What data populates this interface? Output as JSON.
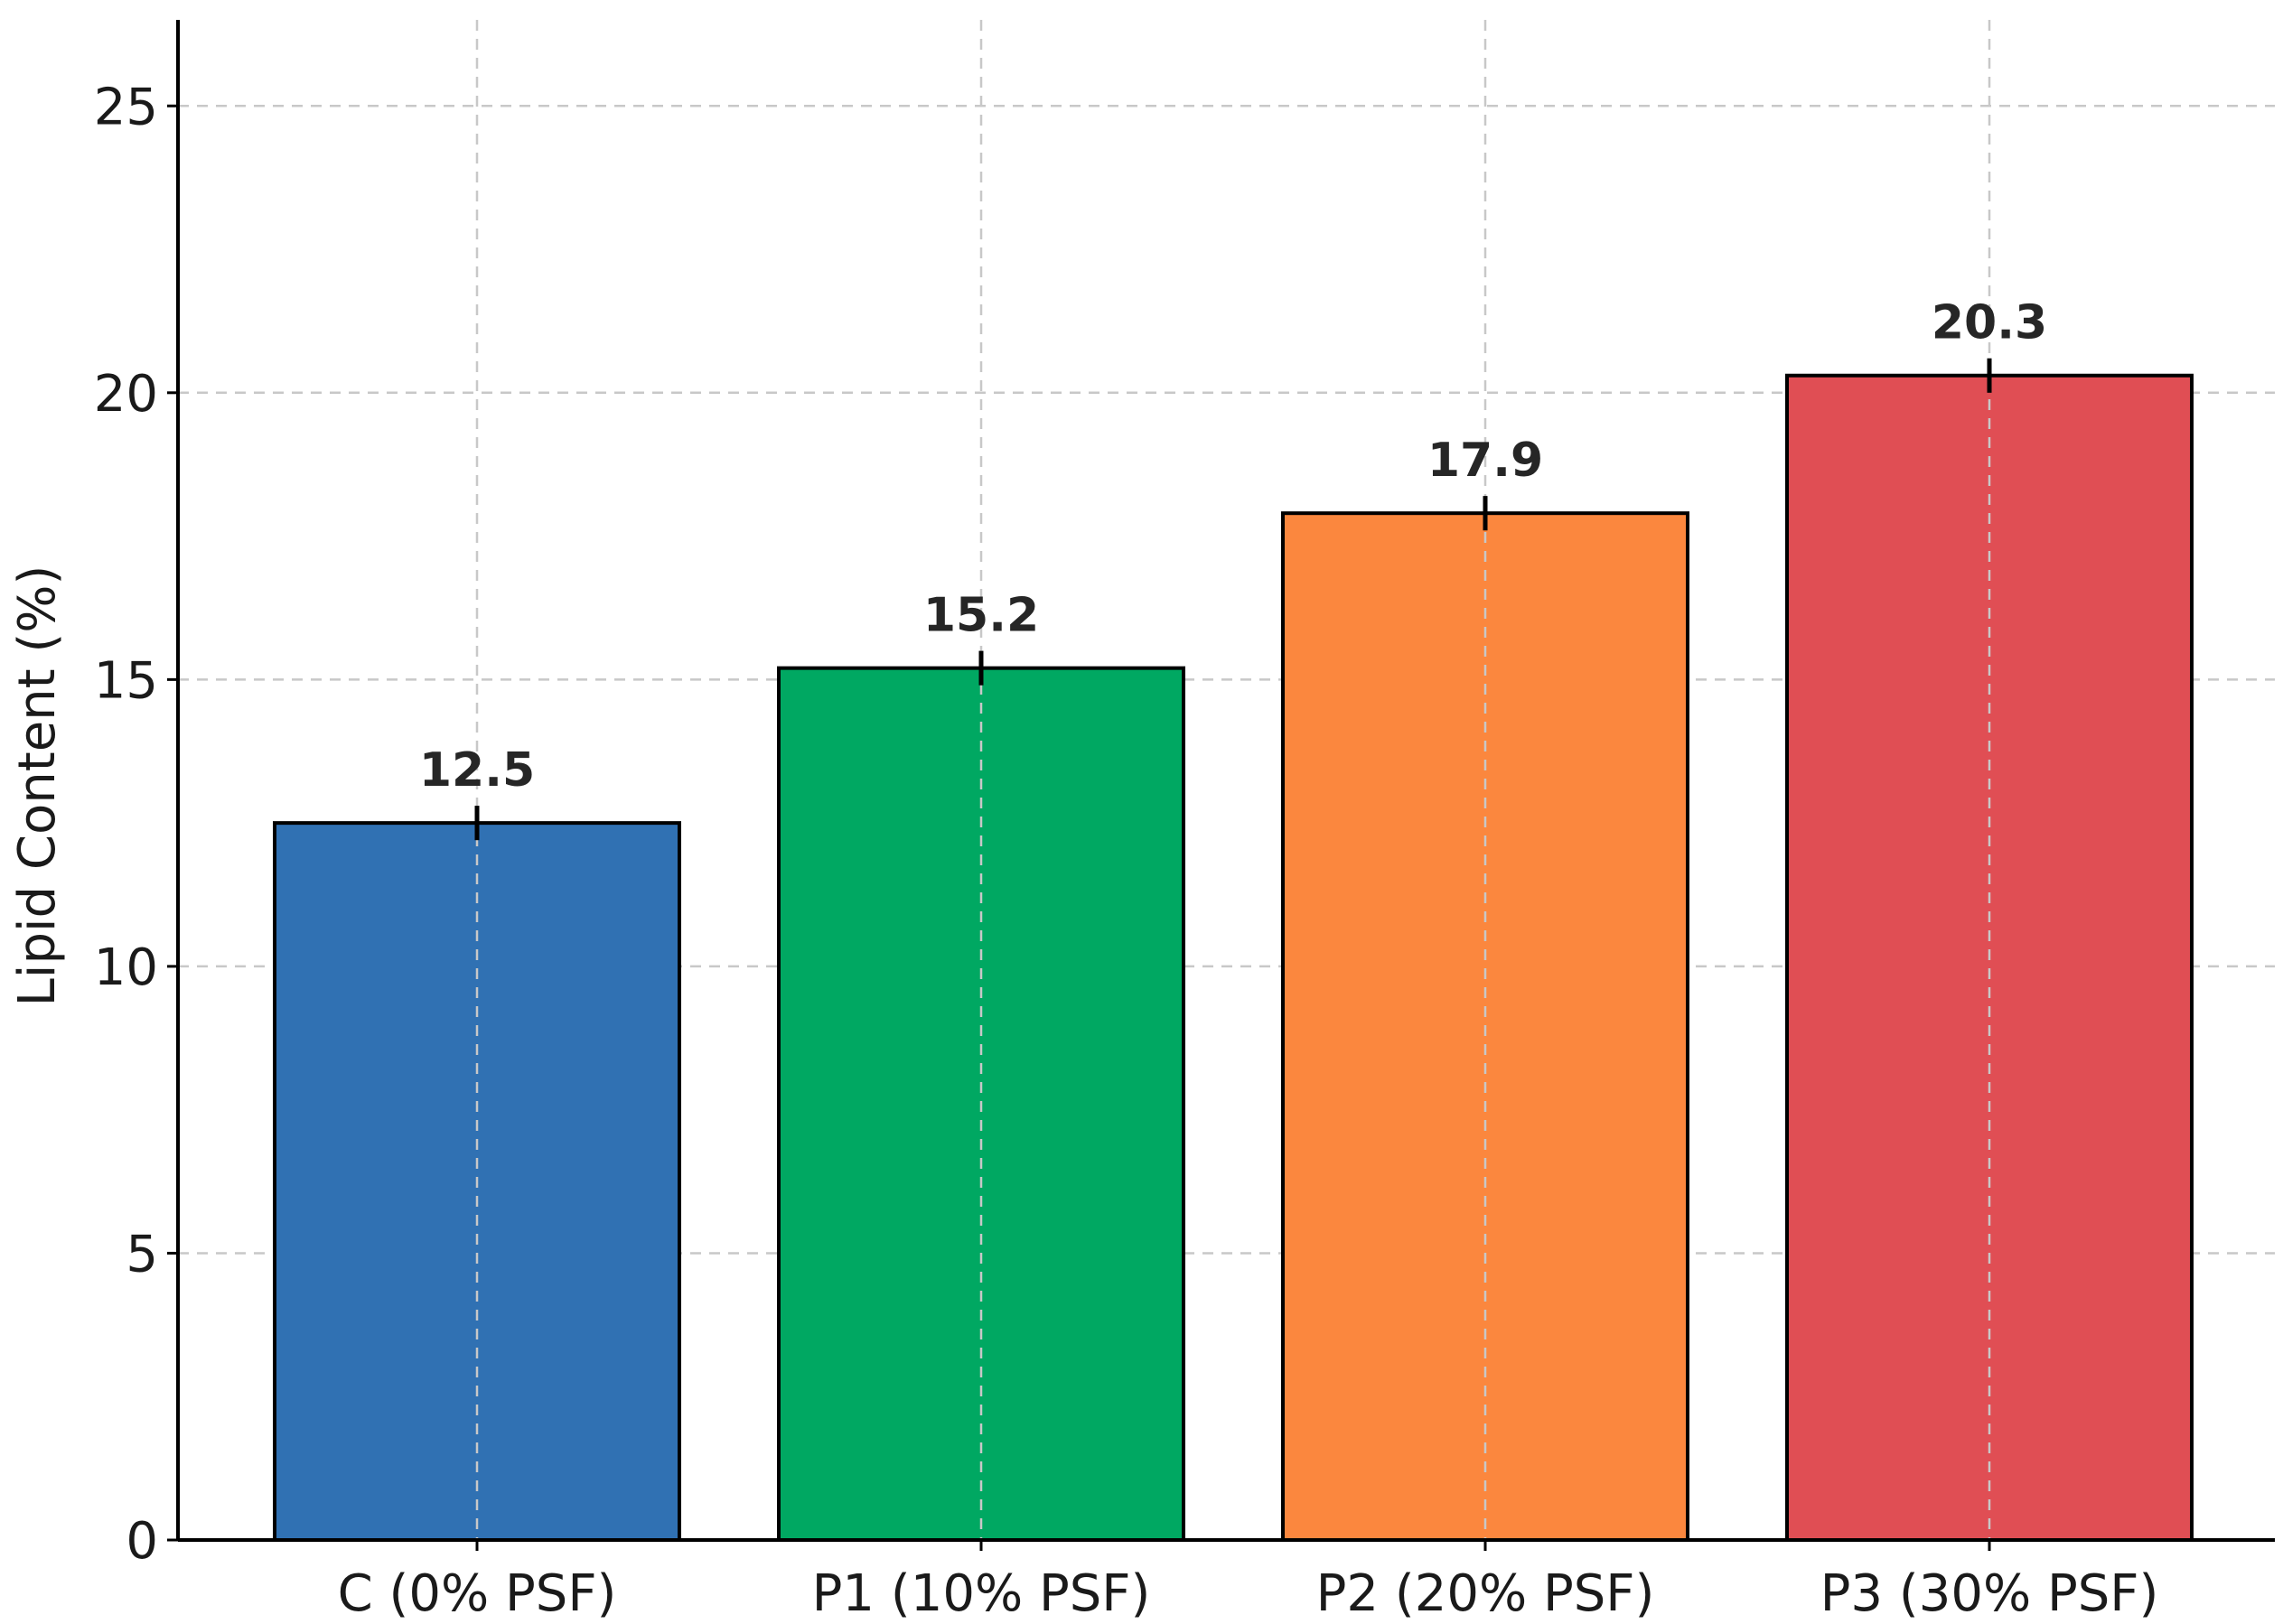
{
  "chart_data": {
    "type": "bar",
    "title": "",
    "xlabel": "",
    "ylabel": "Lipid Content (%)",
    "categories": [
      "C (0% PSF)",
      "P1 (10% PSF)",
      "P2 (20% PSF)",
      "P3 (30% PSF)"
    ],
    "values": [
      12.5,
      15.2,
      17.9,
      20.3
    ],
    "value_labels": [
      "12.5",
      "15.2",
      "17.9",
      "20.3"
    ],
    "error": [
      0.3,
      0.3,
      0.3,
      0.3
    ],
    "colors": [
      "#3071b3",
      "#00a862",
      "#fb873e",
      "#e04e54"
    ],
    "ylim": [
      0,
      26.5
    ],
    "yticks": [
      0,
      5,
      10,
      15,
      20,
      25
    ],
    "ytick_labels": [
      "0",
      "5",
      "10",
      "15",
      "20",
      "25"
    ],
    "grid": true,
    "legend": "none"
  }
}
